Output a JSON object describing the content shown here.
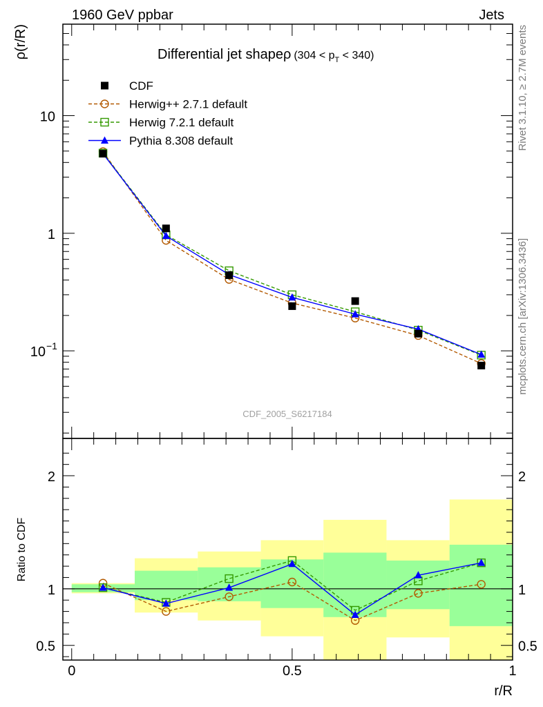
{
  "header": {
    "left": "1960 GeV ppbar",
    "right": "Jets"
  },
  "side_text": {
    "rivet": "Rivet 3.1.10, ≥ 2.7M events",
    "mcplots": "mcplots.cern.ch [arXiv:1306.3436]"
  },
  "watermark": "CDF_2005_S6217184",
  "colors": {
    "cdf": "#000000",
    "herwigpp": "#b35900",
    "herwig7": "#339900",
    "pythia": "#0000ff",
    "band_yellow": "#ffff99",
    "band_green": "#99ff99"
  },
  "chart_data": [
    {
      "type": "line",
      "title": "Differential jet shapeρ",
      "title_suffix": "(304 < p_T < 340)",
      "title_suffix_parts": {
        "pre": "(304 < p",
        "sub": "T",
        "post": " < 340)"
      },
      "ylabel": "ρ(r/R)",
      "yscale": "log",
      "ylim": [
        0.018,
        60
      ],
      "xlim": [
        -0.02,
        1.0
      ],
      "yticks": [
        {
          "value": 10,
          "label": "10"
        },
        {
          "value": 1,
          "label": "1"
        },
        {
          "value": 0.1,
          "label": "10",
          "sup": "−1"
        }
      ],
      "x": [
        0.071,
        0.214,
        0.357,
        0.5,
        0.643,
        0.786,
        0.929
      ],
      "xbins": [
        [
          0.0,
          0.143
        ],
        [
          0.143,
          0.286
        ],
        [
          0.286,
          0.429
        ],
        [
          0.429,
          0.571
        ],
        [
          0.571,
          0.714
        ],
        [
          0.714,
          0.857
        ],
        [
          0.857,
          1.0
        ]
      ],
      "series": [
        {
          "name": "CDF",
          "style": "data",
          "values": [
            4.75,
            1.1,
            0.44,
            0.24,
            0.265,
            0.14,
            0.075
          ]
        },
        {
          "name": "Herwig++ 2.7.1 default",
          "style": "herwigpp",
          "values": [
            4.95,
            0.87,
            0.405,
            0.255,
            0.19,
            0.135,
            0.078
          ]
        },
        {
          "name": "Herwig 7.2.1 default",
          "style": "herwig7",
          "values": [
            4.8,
            0.97,
            0.48,
            0.3,
            0.215,
            0.15,
            0.092
          ]
        },
        {
          "name": "Pythia 8.308 default",
          "style": "pythia",
          "values": [
            4.75,
            0.95,
            0.445,
            0.285,
            0.205,
            0.153,
            0.093
          ]
        }
      ],
      "legend_position": "top-left"
    },
    {
      "type": "line",
      "ylabel": "Ratio to CDF",
      "xlabel": "r/R",
      "ylim": [
        0.37,
        2.33
      ],
      "xlim": [
        -0.02,
        1.0
      ],
      "reference_line": 1,
      "yticks": [
        {
          "value": 0.5,
          "label": "0.5"
        },
        {
          "value": 1,
          "label": "1"
        },
        {
          "value": 2,
          "label": "2"
        }
      ],
      "xticks": [
        {
          "value": 0,
          "label": "0"
        },
        {
          "value": 0.5,
          "label": "0.5"
        },
        {
          "value": 1,
          "label": "1"
        }
      ],
      "x": [
        0.071,
        0.214,
        0.357,
        0.5,
        0.643,
        0.786,
        0.929
      ],
      "bands": {
        "yellow": [
          [
            0.96,
            1.05
          ],
          [
            0.79,
            1.27
          ],
          [
            0.72,
            1.33
          ],
          [
            0.58,
            1.43
          ],
          [
            0.36,
            1.61
          ],
          [
            0.57,
            1.43
          ],
          [
            0.36,
            1.79
          ]
        ],
        "green": [
          [
            0.97,
            1.04
          ],
          [
            0.9,
            1.16
          ],
          [
            0.89,
            1.19
          ],
          [
            0.83,
            1.26
          ],
          [
            0.75,
            1.32
          ],
          [
            0.82,
            1.25
          ],
          [
            0.67,
            1.39
          ]
        ]
      },
      "series": [
        {
          "name": "Herwig++ 2.7.1 default",
          "style": "herwigpp",
          "values": [
            1.05,
            0.8,
            0.93,
            1.06,
            0.72,
            0.96,
            1.04
          ]
        },
        {
          "name": "Herwig 7.2.1 default",
          "style": "herwig7",
          "values": [
            1.01,
            0.88,
            1.09,
            1.25,
            0.81,
            1.07,
            1.23
          ]
        },
        {
          "name": "Pythia 8.308 default",
          "style": "pythia",
          "values": [
            1.01,
            0.87,
            1.01,
            1.22,
            0.77,
            1.12,
            1.23
          ]
        }
      ]
    }
  ]
}
